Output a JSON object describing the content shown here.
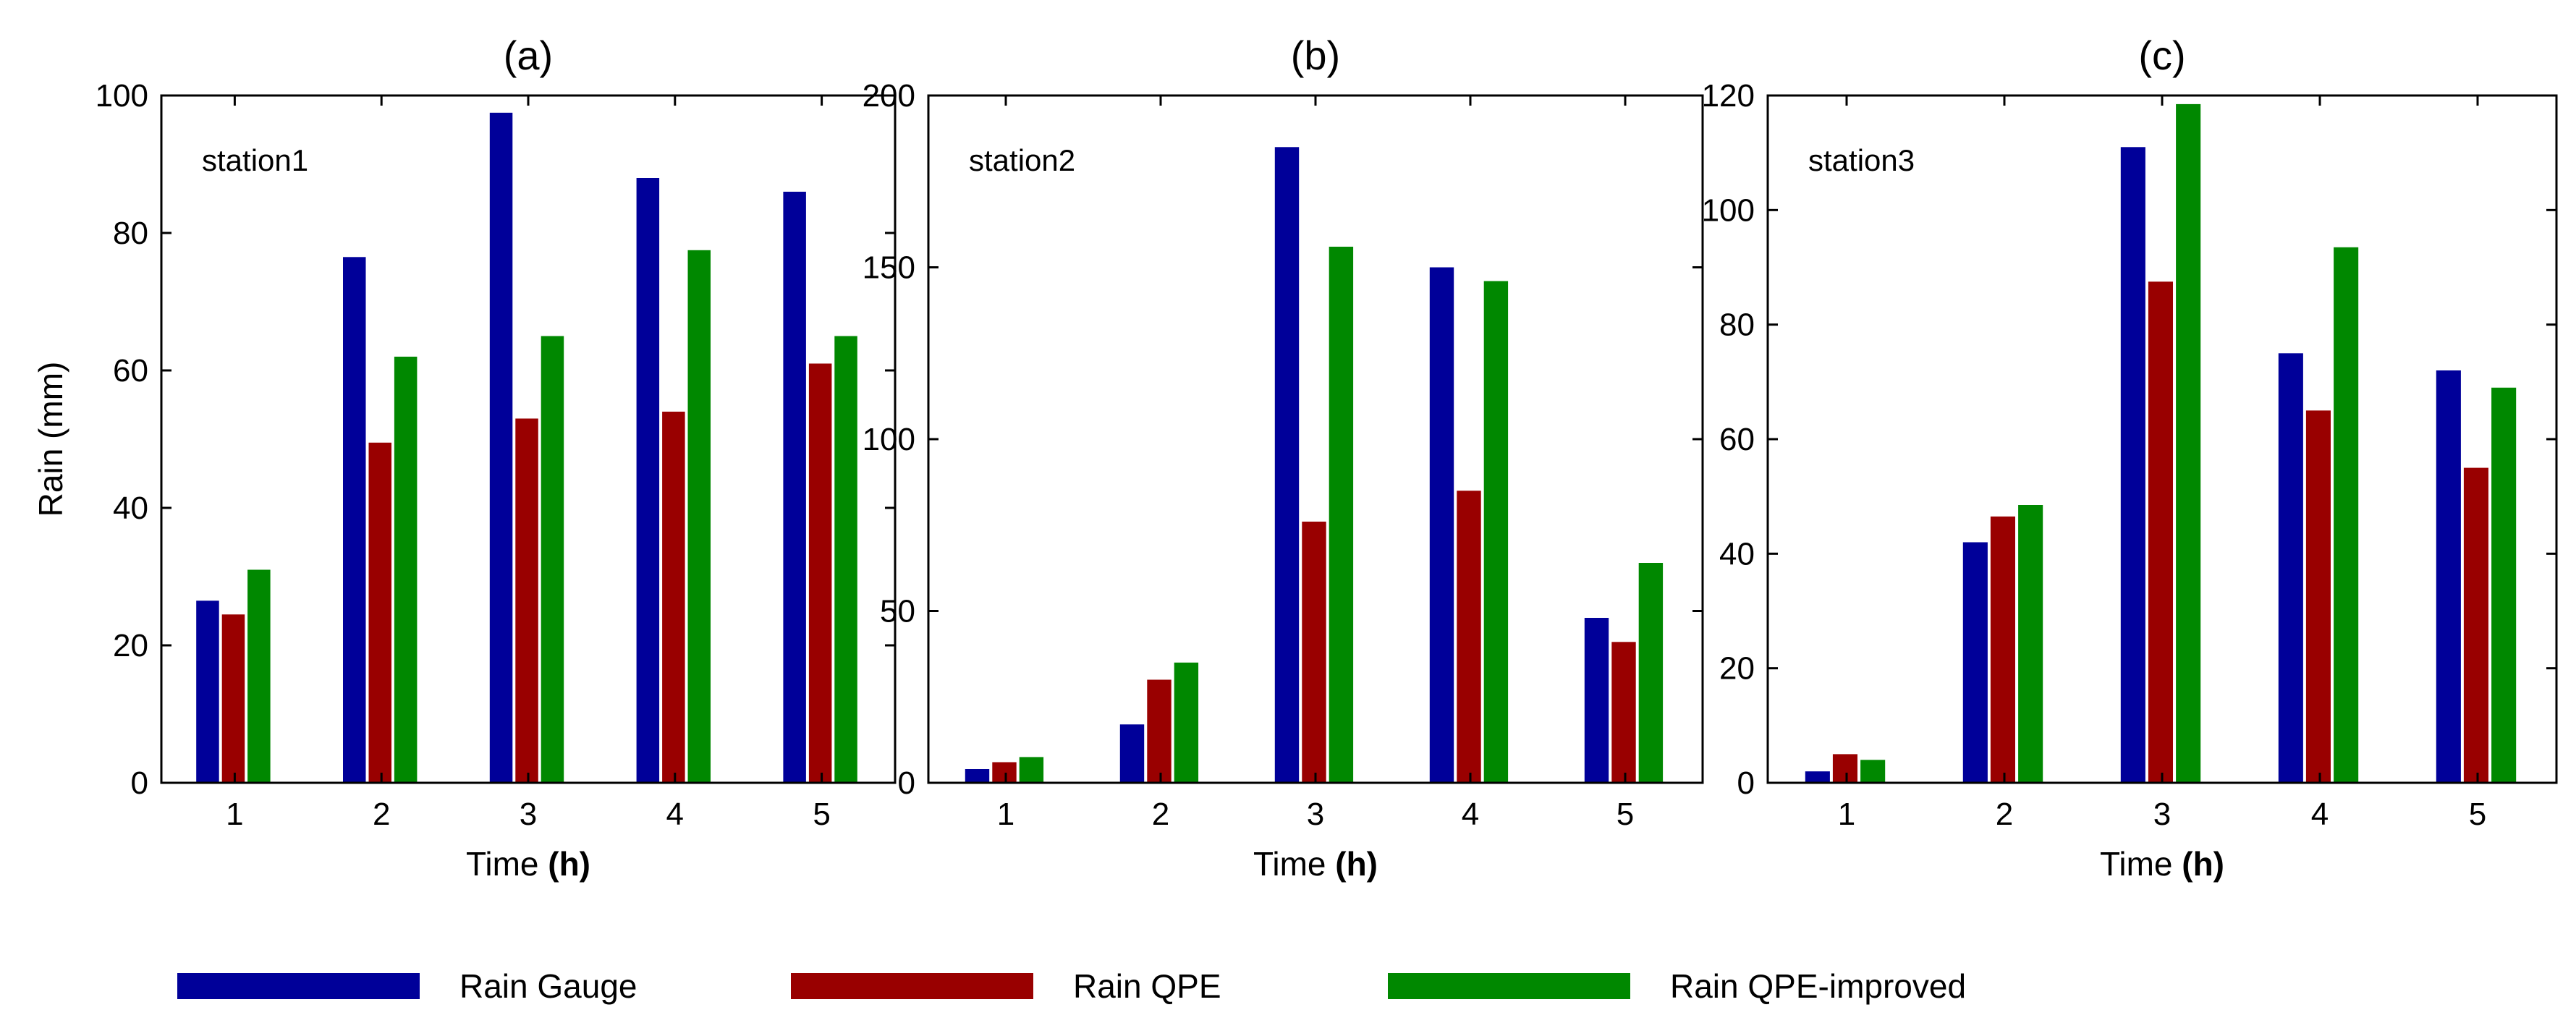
{
  "figure": {
    "legend": [
      {
        "name": "Rain Gauge",
        "color": "#000099"
      },
      {
        "name": "Rain QPE",
        "color": "#990000"
      },
      {
        "name": "Rain QPE-improved",
        "color": "#008800"
      }
    ]
  },
  "chart_data": [
    {
      "type": "bar",
      "title": "(a)",
      "annotation": "station1",
      "xlabel_main": "Time",
      "xlabel_unit": "(h)",
      "ylabel": "Rain (mm)",
      "categories": [
        "1",
        "2",
        "3",
        "4",
        "5"
      ],
      "ylim": [
        0,
        100
      ],
      "yticks": [
        0,
        20,
        40,
        60,
        80,
        100
      ],
      "series": [
        {
          "name": "Rain Gauge",
          "values": [
            26.5,
            76.5,
            97.5,
            88,
            86
          ]
        },
        {
          "name": "Rain QPE",
          "values": [
            24.5,
            49.5,
            53,
            54,
            61
          ]
        },
        {
          "name": "Rain QPE-improved",
          "values": [
            31,
            62,
            65,
            77.5,
            65
          ]
        }
      ]
    },
    {
      "type": "bar",
      "title": "(b)",
      "annotation": "station2",
      "xlabel_main": "Time",
      "xlabel_unit": "(h)",
      "ylabel": "",
      "categories": [
        "1",
        "2",
        "3",
        "4",
        "5"
      ],
      "ylim": [
        0,
        200
      ],
      "yticks": [
        0,
        50,
        100,
        150,
        200
      ],
      "series": [
        {
          "name": "Rain Gauge",
          "values": [
            4,
            17,
            185,
            150,
            48
          ]
        },
        {
          "name": "Rain QPE",
          "values": [
            6,
            30,
            76,
            85,
            41
          ]
        },
        {
          "name": "Rain QPE-improved",
          "values": [
            7.5,
            35,
            156,
            146,
            64
          ]
        }
      ]
    },
    {
      "type": "bar",
      "title": "(c)",
      "annotation": "station3",
      "xlabel_main": "Time",
      "xlabel_unit": "(h)",
      "ylabel": "",
      "categories": [
        "1",
        "2",
        "3",
        "4",
        "5"
      ],
      "ylim": [
        0,
        120
      ],
      "yticks": [
        0,
        20,
        40,
        60,
        80,
        100,
        120
      ],
      "series": [
        {
          "name": "Rain Gauge",
          "values": [
            2,
            42,
            111,
            75,
            72
          ]
        },
        {
          "name": "Rain QPE",
          "values": [
            5,
            46.5,
            87.5,
            65,
            55
          ]
        },
        {
          "name": "Rain QPE-improved",
          "values": [
            4,
            48.5,
            118.5,
            93.5,
            69
          ]
        }
      ]
    }
  ]
}
